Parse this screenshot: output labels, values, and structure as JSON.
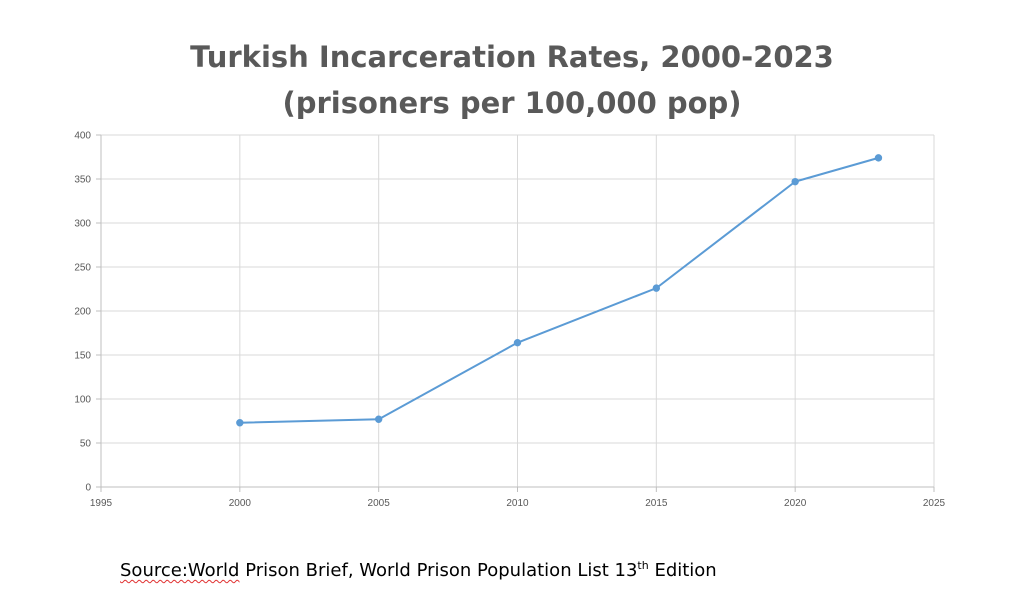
{
  "chart_data": {
    "type": "scatter",
    "mode": "lines+markers",
    "title": [
      "Turkish Incarceration Rates, 2000-2023",
      "(prisoners per 100,000 pop)"
    ],
    "xlabel": "",
    "ylabel": "",
    "x": [
      2000,
      2005,
      2010,
      2015,
      2020,
      2023
    ],
    "series": [
      {
        "values": [
          73,
          77,
          164,
          226,
          347,
          374
        ]
      }
    ],
    "xlim": [
      1995,
      2025
    ],
    "ylim": [
      0,
      400
    ],
    "x_ticks": [
      1995,
      2000,
      2005,
      2010,
      2015,
      2020,
      2025
    ],
    "y_ticks": [
      0,
      50,
      100,
      150,
      200,
      250,
      300,
      350,
      400
    ],
    "grid": true,
    "legend": "none",
    "colors": {
      "series": "#5b9bd5",
      "grid": "#d9d9d9",
      "axis": "#bfbfbf",
      "text": "#595959"
    }
  },
  "source": {
    "lead": "Source:World",
    "rest": " Prison Brief, World Prison Population List 13",
    "sup": "th",
    "tail": " Edition"
  }
}
